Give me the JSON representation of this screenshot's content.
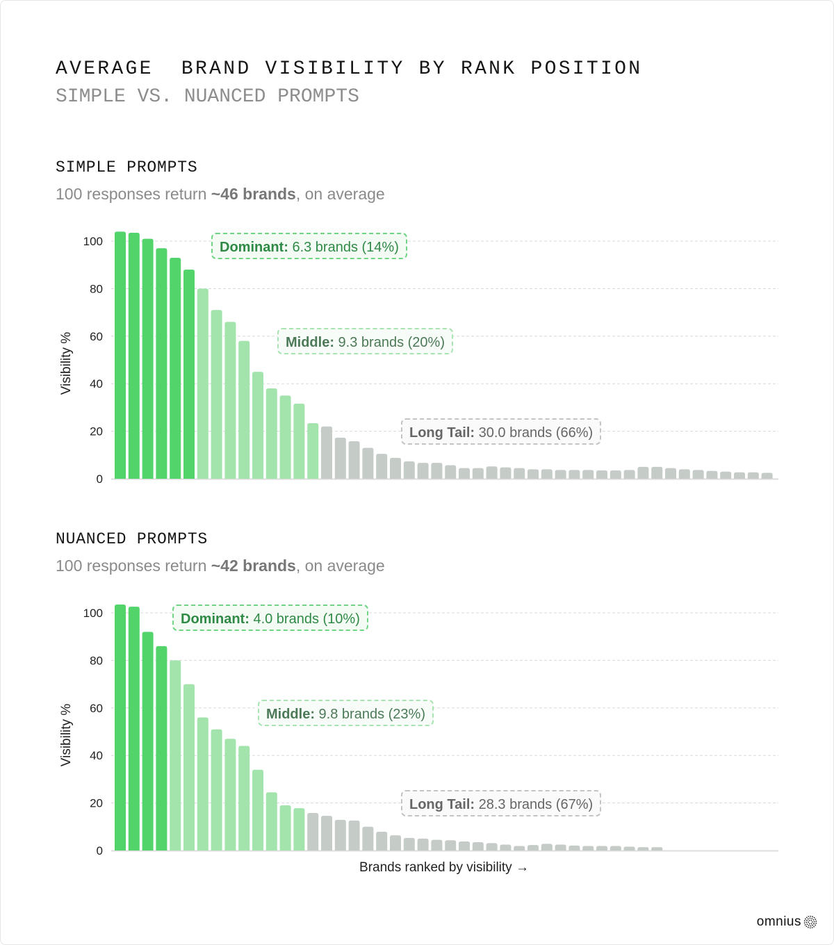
{
  "title": "AVERAGE  BRAND VISIBILITY BY RANK POSITION",
  "subtitle": "SIMPLE VS. NUANCED PROMPTS",
  "logo": "omnius",
  "xlabel": "Brands ranked by visibility →",
  "colors": {
    "dominant": "#52d46b",
    "middle": "#a3e4ad",
    "long_tail": "#c5cbc6"
  },
  "sections": [
    {
      "heading": "SIMPLE PROMPTS",
      "summary_pre": "100 responses return ",
      "summary_bold": "~46 brands",
      "summary_post": ", on average",
      "annotations": {
        "dominant": {
          "label": "Dominant:",
          "text": " 6.3 brands (14%)"
        },
        "middle": {
          "label": "Middle:",
          "text": " 9.3 brands (20%)"
        },
        "long_tail": {
          "label": "Long Tail:",
          "text": " 30.0 brands (66%)"
        }
      }
    },
    {
      "heading": "NUANCED PROMPTS",
      "summary_pre": "100 responses return ",
      "summary_bold": "~42 brands",
      "summary_post": ", on average",
      "annotations": {
        "dominant": {
          "label": "Dominant:",
          "text": " 4.0 brands (10%)"
        },
        "middle": {
          "label": "Middle:",
          "text": " 9.8 brands (23%)"
        },
        "long_tail": {
          "label": "Long Tail:",
          "text": " 28.3 brands (67%)"
        }
      }
    }
  ],
  "chart_data": [
    {
      "type": "bar",
      "title": "SIMPLE PROMPTS",
      "ylabel": "Visibility %",
      "xlabel": "Brands ranked by visibility →",
      "ylim": [
        0,
        100
      ],
      "yticks": [
        0,
        20,
        40,
        60,
        80,
        100
      ],
      "grid": true,
      "segments": {
        "dominant": 6,
        "middle": 9,
        "long_tail": 33
      },
      "values": [
        104,
        103.5,
        101,
        97,
        93,
        88,
        80,
        71,
        66,
        58,
        45,
        38,
        35,
        31.6,
        23.4,
        22,
        17.3,
        15.8,
        13,
        10.5,
        8.8,
        7.3,
        6.7,
        6.7,
        5.7,
        4.5,
        4.5,
        5.2,
        4.8,
        4.5,
        4.0,
        4.0,
        3.7,
        3.7,
        3.7,
        3.5,
        3.5,
        3.7,
        5.0,
        5.0,
        4.5,
        4.0,
        3.7,
        3.3,
        3.0,
        2.7,
        2.7,
        2.5
      ]
    },
    {
      "type": "bar",
      "title": "NUANCED PROMPTS",
      "ylabel": "Visibility %",
      "xlabel": "Brands ranked by visibility →",
      "ylim": [
        0,
        100
      ],
      "yticks": [
        0,
        20,
        40,
        60,
        80,
        100
      ],
      "grid": true,
      "segments": {
        "dominant": 4,
        "middle": 10,
        "long_tail": 26
      },
      "values": [
        103.5,
        102.6,
        92,
        86,
        80,
        70,
        56,
        51,
        47,
        44,
        34,
        24.5,
        19,
        17.8,
        15.8,
        14.6,
        12.9,
        12.6,
        10,
        7.9,
        6.4,
        5.3,
        5.0,
        4.5,
        4.3,
        3.8,
        3.5,
        3.1,
        2.5,
        1.9,
        2.3,
        2.8,
        2.5,
        2.1,
        1.9,
        1.9,
        1.9,
        1.6,
        1.4,
        1.4
      ]
    }
  ]
}
